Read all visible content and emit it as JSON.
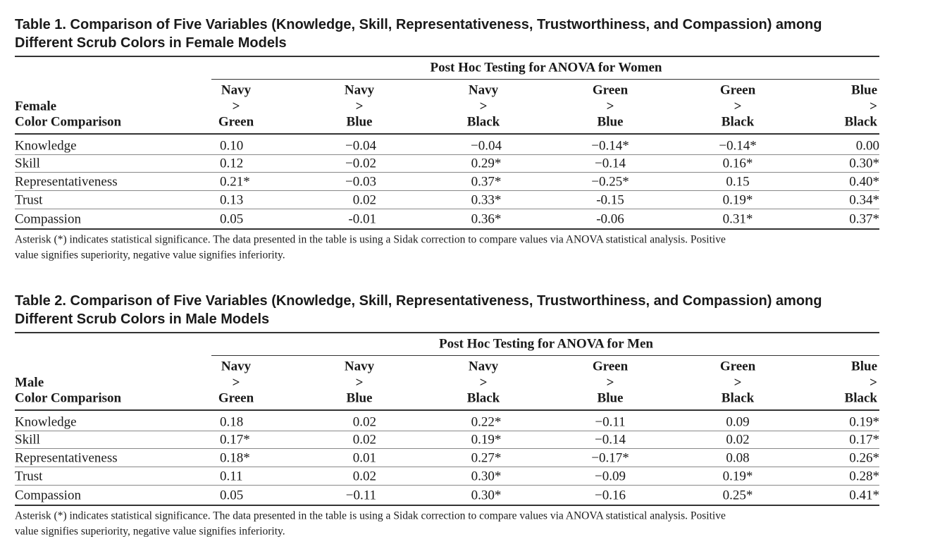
{
  "tables": [
    {
      "title": [
        "Table 1. Comparison of Five Variables (Knowledge, Skill, Representativeness, Trustworthiness, and Compassion) among",
        "Different Scrub Colors in Female Models"
      ],
      "spanner": "Post Hoc Testing for ANOVA for Women",
      "row_header": [
        "Female",
        "Color Comparison"
      ],
      "columns": [
        [
          "Navy",
          ">",
          "Green"
        ],
        [
          "Navy",
          ">",
          "Blue"
        ],
        [
          "Navy",
          ">",
          "Black"
        ],
        [
          "Green",
          ">",
          "Blue"
        ],
        [
          "Green",
          ">",
          "Black"
        ],
        [
          "Blue",
          ">",
          "Black"
        ]
      ],
      "rows": [
        {
          "label": "Knowledge",
          "values": [
            "0.10",
            "−0.04",
            "−0.04",
            "−0.14*",
            "−0.14*",
            "0.00"
          ]
        },
        {
          "label": "Skill",
          "values": [
            "0.12",
            "−0.02",
            "0.29*",
            "−0.14",
            "0.16*",
            "0.30*"
          ]
        },
        {
          "label": "Representativeness",
          "values": [
            "0.21*",
            "−0.03",
            "0.37*",
            "−0.25*",
            "0.15",
            "0.40*"
          ]
        },
        {
          "label": "Trust",
          "values": [
            "0.13",
            "0.02",
            "0.33*",
            "-0.15",
            "0.19*",
            "0.34*"
          ]
        },
        {
          "label": "Compassion",
          "values": [
            "0.05",
            "-0.01",
            "0.36*",
            "-0.06",
            "0.31*",
            "0.37*"
          ]
        }
      ],
      "note": [
        "Asterisk (*) indicates statistical significance. The data presented in the table is using a Sidak correction to compare values via ANOVA statistical analysis. Positive",
        "value signifies superiority, negative value signifies inferiority."
      ]
    },
    {
      "title": [
        "Table 2. Comparison of Five Variables (Knowledge, Skill, Representativeness, Trustworthiness, and Compassion) among",
        "Different Scrub Colors in Male Models"
      ],
      "spanner": "Post Hoc Testing for ANOVA for Men",
      "row_header": [
        "Male",
        "Color Comparison"
      ],
      "columns": [
        [
          "Navy",
          ">",
          "Green"
        ],
        [
          "Navy",
          ">",
          "Blue"
        ],
        [
          "Navy",
          ">",
          "Black"
        ],
        [
          "Green",
          ">",
          "Blue"
        ],
        [
          "Green",
          ">",
          "Black"
        ],
        [
          "Blue",
          ">",
          "Black"
        ]
      ],
      "rows": [
        {
          "label": "Knowledge",
          "values": [
            "0.18",
            "0.02",
            "0.22*",
            "−0.11",
            "0.09",
            "0.19*"
          ]
        },
        {
          "label": "Skill",
          "values": [
            "0.17*",
            "0.02",
            "0.19*",
            "−0.14",
            "0.02",
            "0.17*"
          ]
        },
        {
          "label": "Representativeness",
          "values": [
            "0.18*",
            "0.01",
            "0.27*",
            "−0.17*",
            "0.08",
            "0.26*"
          ]
        },
        {
          "label": "Trust",
          "values": [
            "0.11",
            "0.02",
            "0.30*",
            "−0.09",
            "0.19*",
            "0.28*"
          ]
        },
        {
          "label": "Compassion",
          "values": [
            "0.05",
            "−0.11",
            "0.30*",
            "−0.16",
            "0.25*",
            "0.41*"
          ]
        }
      ],
      "note": [
        "Asterisk (*) indicates statistical significance. The data presented in the table is using a Sidak correction to compare values via ANOVA statistical analysis. Positive",
        "value signifies superiority, negative value signifies inferiority."
      ]
    }
  ]
}
